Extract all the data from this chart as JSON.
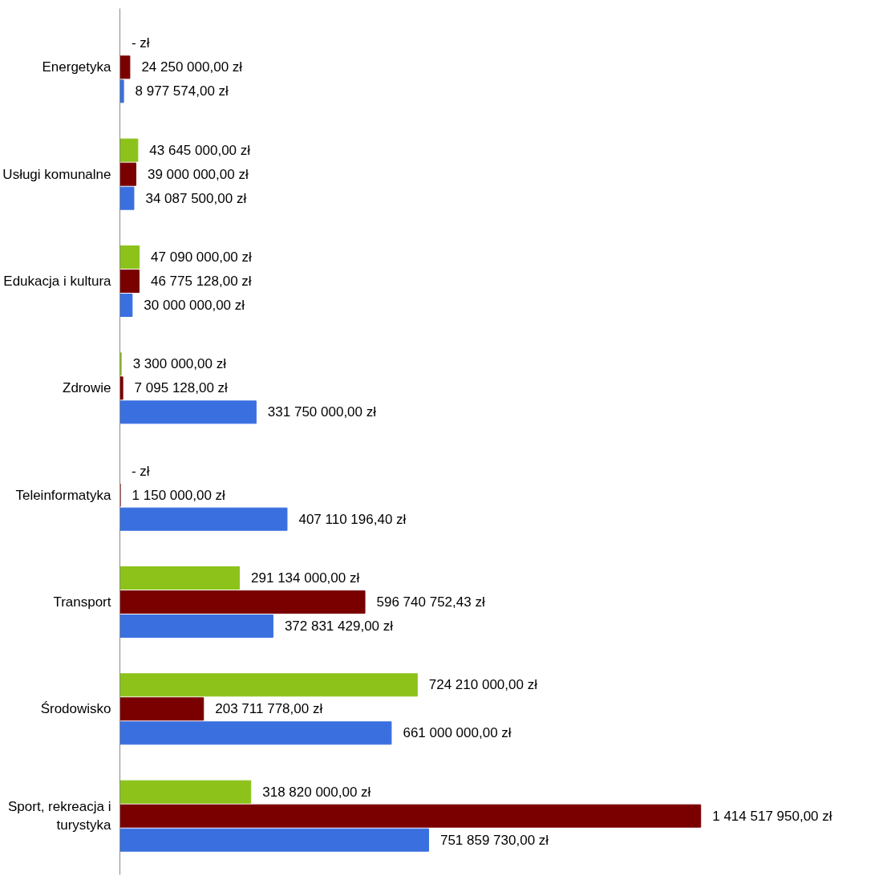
{
  "chart_data": {
    "type": "bar",
    "orientation": "horizontal",
    "categories": [
      "Energetyka",
      "Usługi komunalne",
      "Edukacja i kultura",
      "Zdrowie",
      "Teleinformatyka",
      "Transport",
      "Środowisko",
      "Sport, rekreacja i turystyka"
    ],
    "series": [
      {
        "color": "#8cc21a",
        "values": [
          0,
          43645000,
          47090000,
          3300000,
          0,
          291134000,
          724210000,
          318820000
        ],
        "value_labels": [
          "-     zł",
          "43 645 000,00 zł",
          "47 090 000,00 zł",
          "3 300 000,00 zł",
          "-     zł",
          "291 134 000,00 zł",
          "724 210 000,00 zł",
          "318 820 000,00 zł"
        ]
      },
      {
        "color": "#7a0000",
        "values": [
          24250000,
          39000000,
          46775128,
          7095128,
          1150000,
          596740752.43,
          203711778,
          1414517950
        ],
        "value_labels": [
          "24 250 000,00 zł",
          "39 000 000,00 zł",
          "46 775 128,00 zł",
          "7 095 128,00 zł",
          "1 150 000,00 zł",
          "596 740 752,43 zł",
          "203 711 778,00 zł",
          "1 414 517 950,00 zł"
        ]
      },
      {
        "color": "#3a6fe0",
        "values": [
          8977574,
          34087500,
          30000000,
          331750000,
          407110196.4,
          372831429,
          661000000,
          751859730
        ],
        "value_labels": [
          "8 977 574,00 zł",
          "34 087 500,00 zł",
          "30 000 000,00 zł",
          "331 750 000,00 zł",
          "407 110 196,40 zł",
          "372 831 429,00 zł",
          "661 000 000,00 zł",
          "751 859 730,00 zł"
        ]
      }
    ]
  }
}
